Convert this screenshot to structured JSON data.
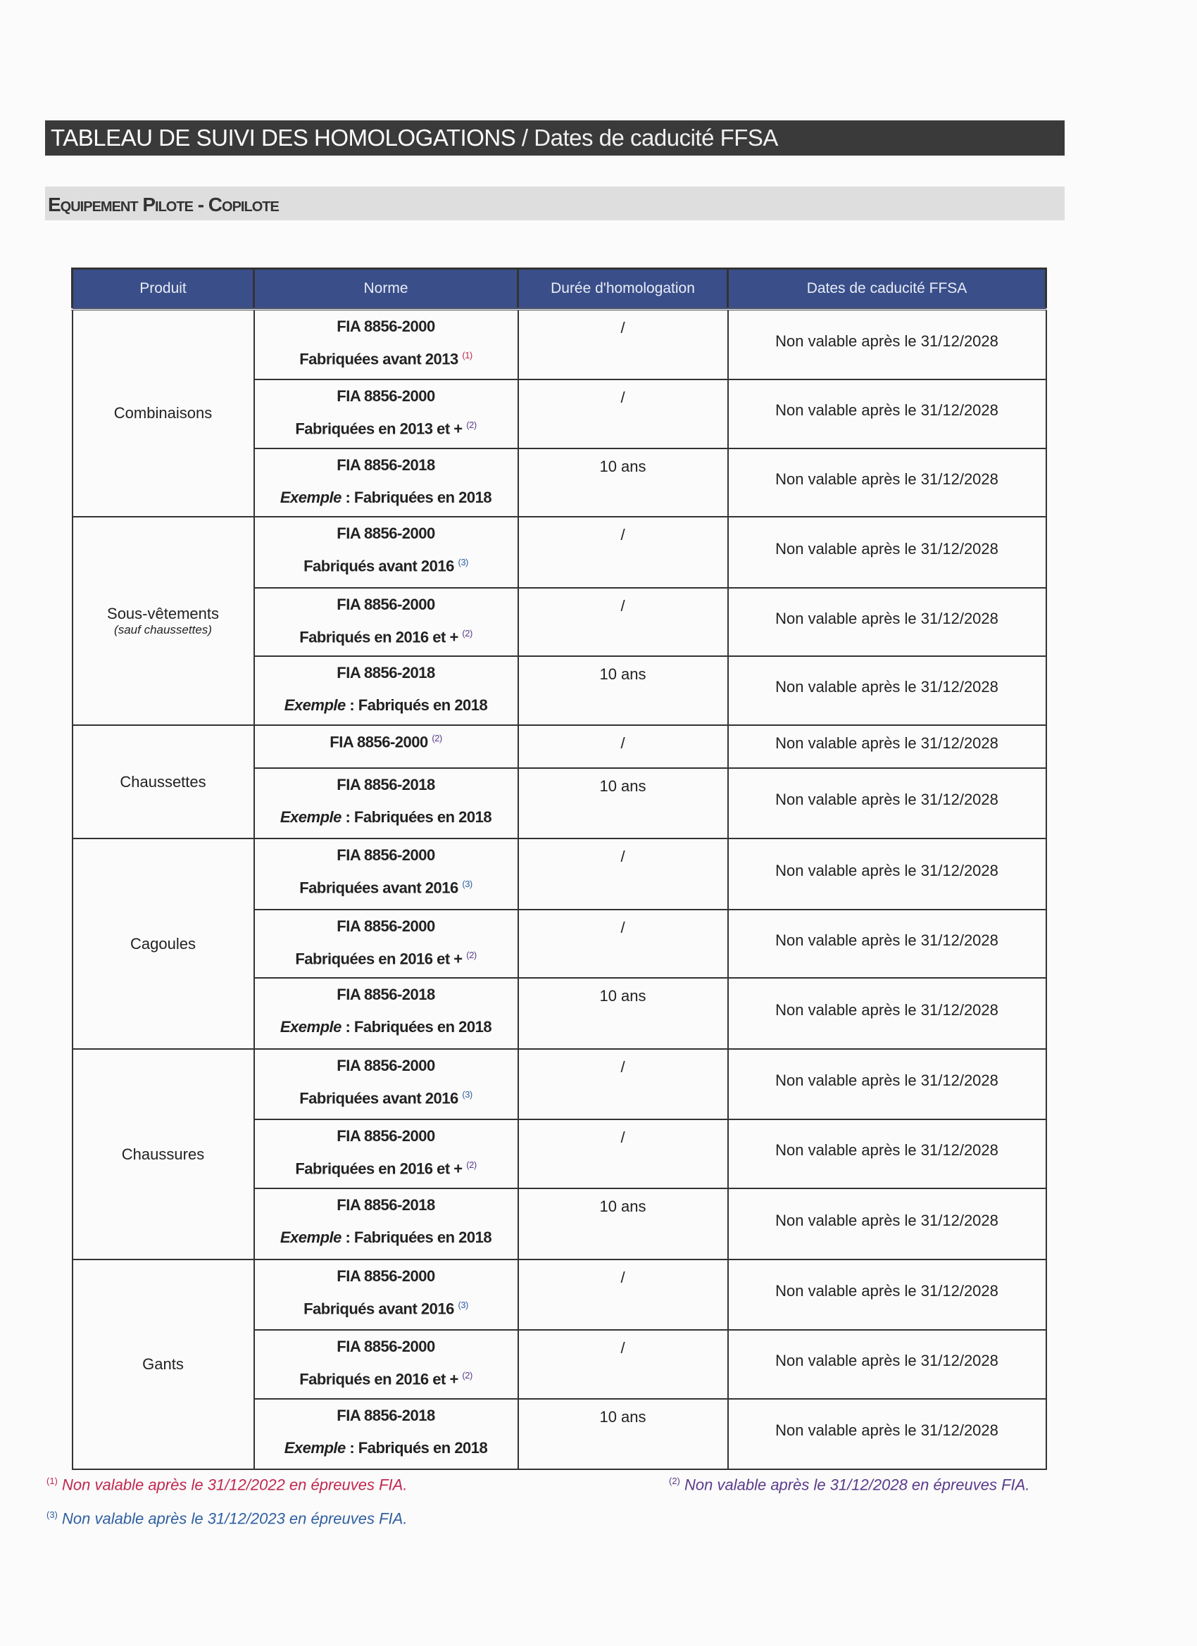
{
  "header": {
    "title_bold": "TABLEAU DE SUIVI DES HOMOLOGATIONS",
    "separator": "/",
    "title_light": "Dates de caducité FFSA"
  },
  "section": {
    "title": "Equipement Pilote - Copilote"
  },
  "table": {
    "columns": [
      "Produit",
      "Norme",
      "Durée d'homologation",
      "Dates de caducité FFSA"
    ],
    "groups": [
      {
        "product": "Combinaisons",
        "note": "",
        "rows": [
          {
            "norme": "FIA 8856-2000",
            "detail_prefix": "",
            "detail": "Fabriquées avant 2013",
            "ref": "(1)",
            "ref_color": "#c0284f",
            "duration": "/",
            "date": "Non valable après le 31/12/2028",
            "h": 100
          },
          {
            "norme": "FIA 8856-2000",
            "detail_prefix": "",
            "detail": "Fabriquées en 2013 et +",
            "ref": "(2)",
            "ref_color": "#5a3a8a",
            "duration": "/",
            "date": "Non valable après le 31/12/2028",
            "h": 98
          },
          {
            "norme": "FIA 8856-2018",
            "detail_prefix": "Exemple",
            "detail": " : Fabriquées en 2018",
            "ref": "",
            "duration": "10 ans",
            "date": "Non valable après le 31/12/2028",
            "h": 97
          }
        ]
      },
      {
        "product": "Sous-vêtements",
        "note": "(sauf chaussettes)",
        "rows": [
          {
            "norme": "FIA 8856-2000",
            "detail_prefix": "",
            "detail": "Fabriqués avant 2016",
            "ref": "(3)",
            "ref_color": "#2f5fa0",
            "duration": "/",
            "date": "Non valable après le 31/12/2028",
            "h": 101
          },
          {
            "norme": "FIA 8856-2000",
            "detail_prefix": "",
            "detail": "Fabriqués en 2016 et +",
            "ref": "(2)",
            "ref_color": "#5a3a8a",
            "duration": "/",
            "date": "Non valable après le 31/12/2028",
            "h": 97
          },
          {
            "norme": "FIA 8856-2018",
            "detail_prefix": "Exemple",
            "detail": " : Fabriqués en 2018",
            "ref": "",
            "duration": "10 ans",
            "date": "Non valable après le 31/12/2028",
            "h": 98
          }
        ]
      },
      {
        "product": "Chaussettes",
        "note": "",
        "rows": [
          {
            "norme": "FIA 8856-2000",
            "norme_ref": "(2)",
            "detail_prefix": "",
            "detail": "",
            "ref": "",
            "ref_color": "#5a3a8a",
            "duration": "/",
            "date": "Non valable après le 31/12/2028",
            "h": 61
          },
          {
            "norme": "FIA 8856-2018",
            "detail_prefix": "Exemple",
            "detail": " : Fabriquées en 2018",
            "ref": "",
            "duration": "10 ans",
            "date": "Non valable après le 31/12/2028",
            "h": 100
          }
        ]
      },
      {
        "product": "Cagoules",
        "note": "",
        "rows": [
          {
            "norme": "FIA 8856-2000",
            "detail_prefix": "",
            "detail": "Fabriquées avant 2016",
            "ref": "(3)",
            "ref_color": "#2f5fa0",
            "duration": "/",
            "date": "Non valable après le 31/12/2028",
            "h": 101
          },
          {
            "norme": "FIA 8856-2000",
            "detail_prefix": "",
            "detail": "Fabriquées en 2016 et +",
            "ref": "(2)",
            "ref_color": "#5a3a8a",
            "duration": "/",
            "date": "Non valable après le 31/12/2028",
            "h": 97
          },
          {
            "norme": "FIA 8856-2018",
            "detail_prefix": "Exemple",
            "detail": " : Fabriquées en 2018",
            "ref": "",
            "duration": "10 ans",
            "date": "Non valable après le 31/12/2028",
            "h": 101
          }
        ]
      },
      {
        "product": "Chaussures",
        "note": "",
        "rows": [
          {
            "norme": "FIA 8856-2000",
            "detail_prefix": "",
            "detail": "Fabriquées avant 2016",
            "ref": "(3)",
            "ref_color": "#2f5fa0",
            "duration": "/",
            "date": "Non valable après le 31/12/2028",
            "h": 100
          },
          {
            "norme": "FIA 8856-2000",
            "detail_prefix": "",
            "detail": "Fabriquées en 2016 et +",
            "ref": "(2)",
            "ref_color": "#5a3a8a",
            "duration": "/",
            "date": "Non valable après le 31/12/2028",
            "h": 98
          },
          {
            "norme": "FIA 8856-2018",
            "detail_prefix": "Exemple",
            "detail": " : Fabriquées en 2018",
            "ref": "",
            "duration": "10 ans",
            "date": "Non valable après le 31/12/2028",
            "h": 101
          }
        ]
      },
      {
        "product": "Gants",
        "note": "",
        "rows": [
          {
            "norme": "FIA 8856-2000",
            "detail_prefix": "",
            "detail": "Fabriqués avant 2016",
            "ref": "(3)",
            "ref_color": "#2f5fa0",
            "duration": "/",
            "date": "Non valable après le 31/12/2028",
            "h": 100
          },
          {
            "norme": "FIA 8856-2000",
            "detail_prefix": "",
            "detail": "Fabriqués en 2016 et +",
            "ref": "(2)",
            "ref_color": "#5a3a8a",
            "duration": "/",
            "date": "Non valable après le 31/12/2028",
            "h": 98
          },
          {
            "norme": "FIA 8856-2018",
            "detail_prefix": "Exemple",
            "detail": " : Fabriqués en 2018",
            "ref": "",
            "duration": "10 ans",
            "date": "Non valable après le 31/12/2028",
            "h": 100
          }
        ]
      }
    ]
  },
  "footnotes": [
    {
      "ref": "(1)",
      "text": "Non valable après le 31/12/2022 en épreuves FIA.",
      "color": "#c0284f"
    },
    {
      "ref": "(2)",
      "text": "Non valable après le 31/12/2028 en épreuves FIA.",
      "color": "#5a3a8a"
    },
    {
      "ref": "(3)",
      "text": "Non valable après le 31/12/2023 en épreuves FIA.",
      "color": "#2f5fa0"
    }
  ],
  "colors": {
    "header_bg": "#3a4f8a",
    "title_bg": "#3a3a3a",
    "section_bg": "#dedede"
  }
}
